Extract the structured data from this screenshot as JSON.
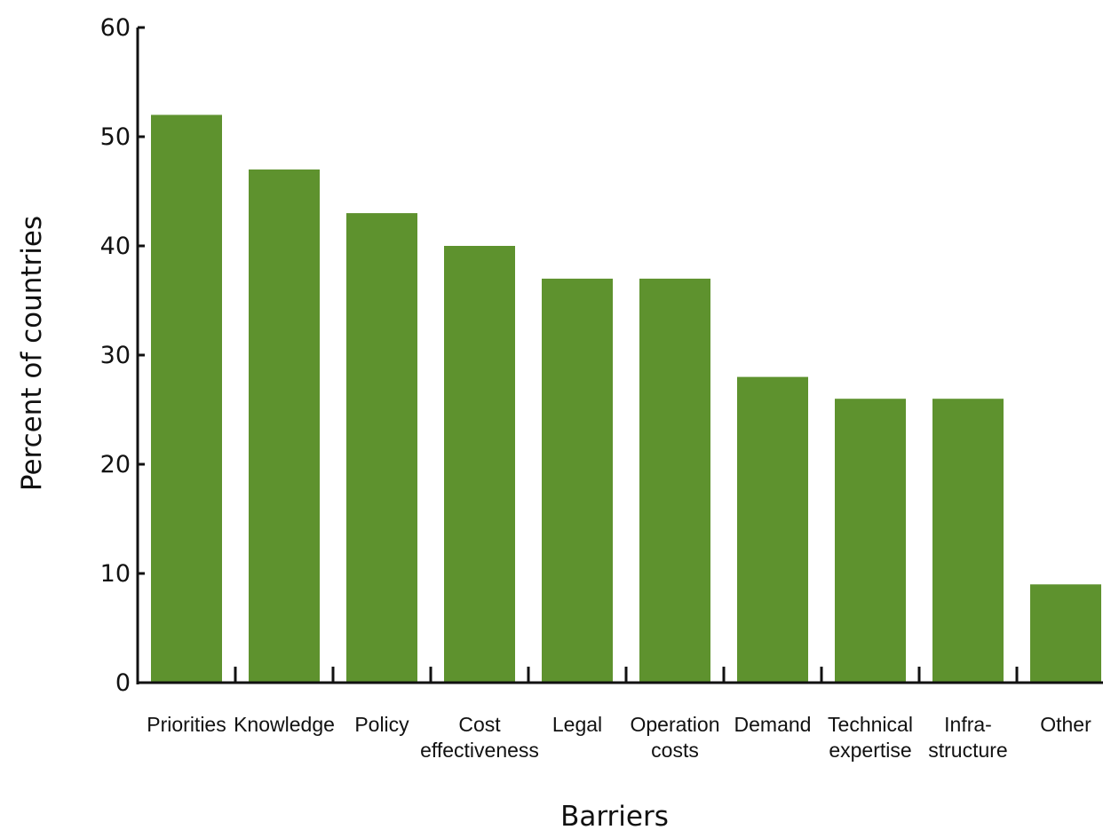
{
  "chart_data": {
    "type": "bar",
    "categories": [
      [
        "Priorities"
      ],
      [
        "Knowledge"
      ],
      [
        "Policy"
      ],
      [
        "Cost",
        "effectiveness"
      ],
      [
        "Legal"
      ],
      [
        "Operation",
        "costs"
      ],
      [
        "Demand"
      ],
      [
        "Technical",
        "expertise"
      ],
      [
        "Infra-",
        "structure"
      ],
      [
        "Other"
      ]
    ],
    "values": [
      52,
      47,
      43,
      40,
      37,
      37,
      28,
      26,
      26,
      9
    ],
    "xlabel": "Barriers",
    "ylabel": "Percent of countries",
    "ylim": [
      0,
      60
    ],
    "yticks": [
      0,
      10,
      20,
      30,
      40,
      50,
      60
    ],
    "bar_color": "#5e922e",
    "axis_color": "#111111",
    "grid": false
  }
}
